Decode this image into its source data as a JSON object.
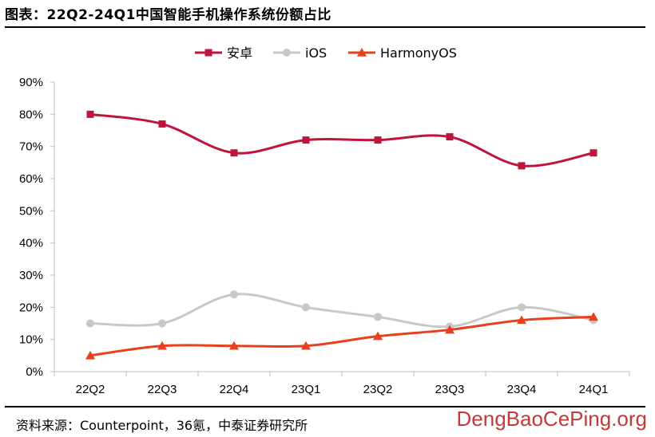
{
  "figure": {
    "title": "图表：22Q2-24Q1中国智能手机操作系统份额占比",
    "source": "资料来源：Counterpoint，36氪，中泰证券研究所",
    "watermark": "DengBaoCePing.org"
  },
  "colors": {
    "android": "#c0143c",
    "ios": "#c8c8c8",
    "harmony": "#e8401c",
    "axis": "#bfbfbf",
    "rule": "#000000",
    "watermark": "#c23a3a"
  },
  "chart_data": {
    "type": "line",
    "title": "22Q2-24Q1中国智能手机操作系统份额占比",
    "xlabel": "",
    "ylabel": "",
    "categories": [
      "22Q2",
      "22Q3",
      "22Q4",
      "23Q1",
      "23Q2",
      "23Q3",
      "23Q4",
      "24Q1"
    ],
    "ylim": [
      0,
      90
    ],
    "yticks": [
      0,
      10,
      20,
      30,
      40,
      50,
      60,
      70,
      80,
      90
    ],
    "ytick_labels": [
      "0%",
      "10%",
      "20%",
      "30%",
      "40%",
      "50%",
      "60%",
      "70%",
      "80%",
      "90%"
    ],
    "grid": false,
    "legend_position": "top-center",
    "series": [
      {
        "name": "安卓",
        "marker": "square",
        "values": [
          80,
          77,
          68,
          72,
          72,
          73,
          64,
          68
        ]
      },
      {
        "name": "iOS",
        "marker": "circle",
        "values": [
          15,
          15,
          24,
          20,
          17,
          14,
          20,
          16
        ]
      },
      {
        "name": "HarmonyOS",
        "marker": "triangle",
        "values": [
          5,
          8,
          8,
          8,
          11,
          13,
          16,
          17
        ]
      }
    ]
  }
}
